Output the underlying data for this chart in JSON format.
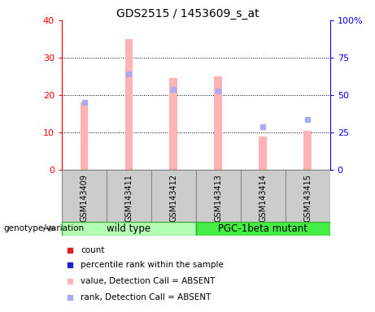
{
  "title": "GDS2515 / 1453609_s_at",
  "samples": [
    "GSM143409",
    "GSM143411",
    "GSM143412",
    "GSM143413",
    "GSM143414",
    "GSM143415"
  ],
  "absent_bar_values": [
    18,
    35,
    24.5,
    25,
    9,
    10.5
  ],
  "absent_rank_pct": [
    45,
    64,
    54,
    53,
    29,
    34
  ],
  "bar_color_absent": "#ffb3b3",
  "rank_color_absent": "#aaaaee",
  "ylim_left": [
    0,
    40
  ],
  "ylim_right": [
    0,
    100
  ],
  "yticks_left": [
    0,
    10,
    20,
    30,
    40
  ],
  "yticks_right": [
    0,
    25,
    50,
    75,
    100
  ],
  "ytick_labels_left": [
    "0",
    "10",
    "20",
    "30",
    "40"
  ],
  "ytick_labels_right": [
    "0",
    "25",
    "50",
    "75",
    "100%"
  ],
  "bar_width": 0.18,
  "rank_marker_size": 5,
  "wild_type_color": "#b3ffb3",
  "pgc_color": "#44ee44",
  "sample_box_color": "#cccccc",
  "legend_items": [
    {
      "color": "#dd2222",
      "label": "count"
    },
    {
      "color": "#2222cc",
      "label": "percentile rank within the sample"
    },
    {
      "color": "#ffb3b3",
      "label": "value, Detection Call = ABSENT"
    },
    {
      "color": "#aaaaee",
      "label": "rank, Detection Call = ABSENT"
    }
  ]
}
